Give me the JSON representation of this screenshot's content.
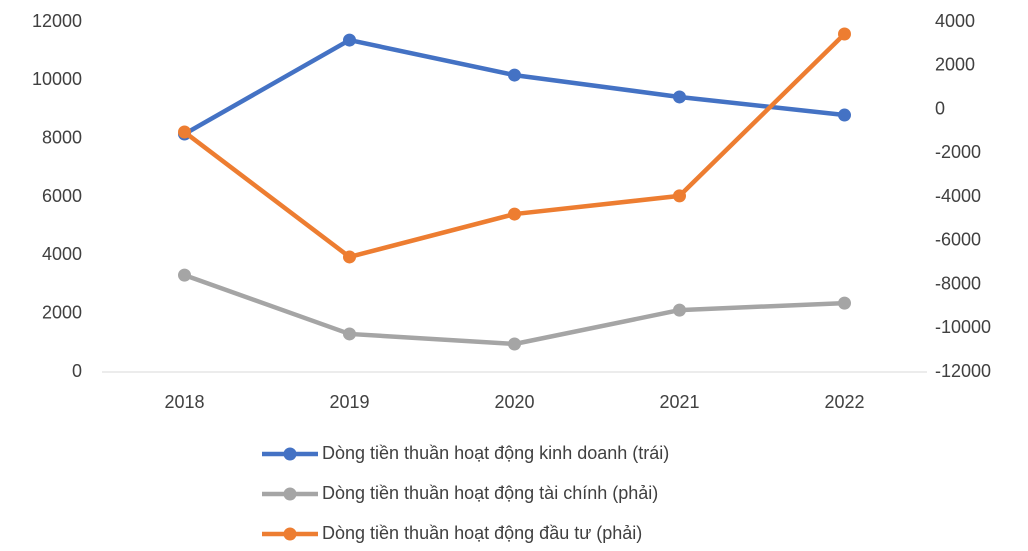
{
  "chart_data": {
    "type": "line",
    "categories": [
      "2018",
      "2019",
      "2020",
      "2021",
      "2022"
    ],
    "series": [
      {
        "name": "Dòng tiền thuần hoạt động kinh doanh (trái)",
        "color": "#4472c4",
        "axis": "y",
        "values": [
          8160,
          11380,
          10180,
          9430,
          8810
        ]
      },
      {
        "name": "Dòng tiền thuần hoạt động tài chính (phải)",
        "color": "#a5a5a5",
        "axis": "y2",
        "values": [
          -7570,
          -10260,
          -10720,
          -9170,
          -8850
        ]
      },
      {
        "name": "Dòng tiền thuần hoạt động đầu tư (phải)",
        "color": "#ed7d31",
        "axis": "y2",
        "values": [
          -1030,
          -6740,
          -4780,
          -3950,
          3450
        ]
      }
    ],
    "ylim": [
      0,
      12000
    ],
    "yticks": [
      0,
      2000,
      4000,
      6000,
      8000,
      10000,
      12000
    ],
    "y2lim": [
      -12000,
      4000
    ],
    "y2ticks": [
      -12000,
      -10000,
      -8000,
      -6000,
      -4000,
      -2000,
      0,
      2000,
      4000
    ],
    "grid": false,
    "legend": "bottom"
  }
}
